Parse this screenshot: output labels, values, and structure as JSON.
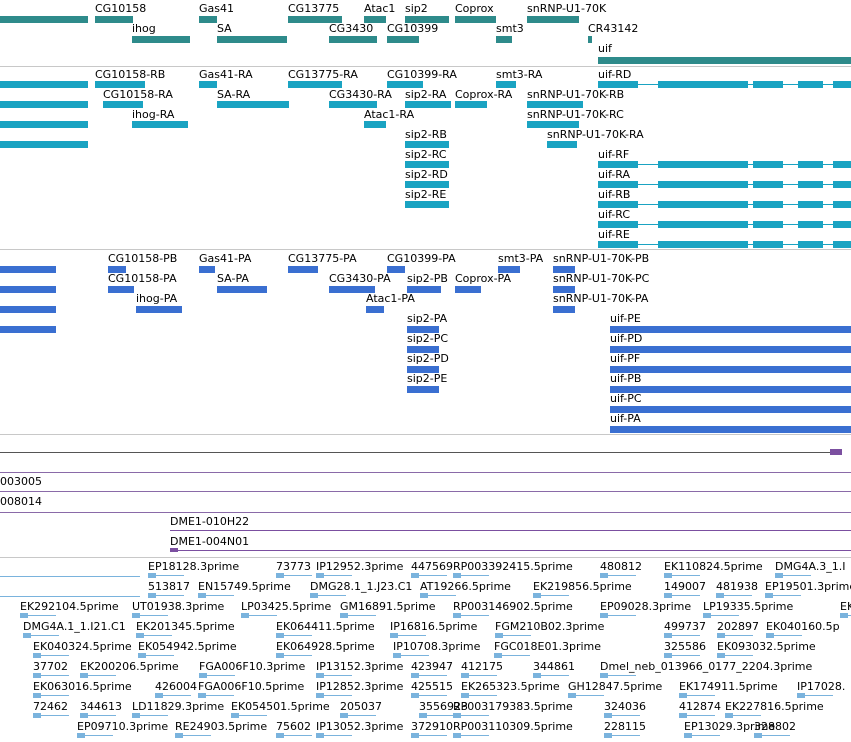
{
  "colors": {
    "gene": "#2e8b8b",
    "transcript": "#1aa3c2",
    "protein": "#3a6fd1",
    "clone": "#7b4fa0",
    "est": "#7ab3dd",
    "divider": "#c8c8c8",
    "trackline": "#8a6aa8"
  },
  "gene_track": {
    "labels": [
      "CG10158",
      "Gas41",
      "CG13775",
      "Atac1",
      "sip2",
      "Coprox",
      "snRNP-U1-70K",
      "ihog",
      "SA",
      "CG3430",
      "CG10399",
      "smt3",
      "CR43142",
      "uif"
    ]
  },
  "transcript_track": {
    "labels": [
      "CG10158-RB",
      "Gas41-RA",
      "CG13775-RA",
      "CG10399-RA",
      "smt3-RA",
      "uif-RD",
      "CG10158-RA",
      "SA-RA",
      "CG3430-RA",
      "sip2-RA",
      "Coprox-RA",
      "snRNP-U1-70K-RB",
      "ihog-RA",
      "Atac1-RA",
      "snRNP-U1-70K-RC",
      "snRNP-U1-70K-RA",
      "sip2-RB",
      "sip2-RC",
      "sip2-RD",
      "sip2-RE",
      "uif-RF",
      "uif-RA",
      "uif-RB",
      "uif-RC",
      "uif-RE"
    ]
  },
  "protein_track": {
    "labels": [
      "CG10158-PB",
      "Gas41-PA",
      "CG13775-PA",
      "CG10399-PA",
      "smt3-PA",
      "snRNP-U1-70K-PB",
      "CG10158-PA",
      "SA-PA",
      "CG3430-PA",
      "sip2-PB",
      "Coprox-PA",
      "snRNP-U1-70K-PC",
      "ihog-PA",
      "Atac1-PA",
      "snRNP-U1-70K-PA",
      "sip2-PA",
      "sip2-PC",
      "sip2-PD",
      "sip2-PE",
      "uif-PE",
      "uif-PD",
      "uif-PF",
      "uif-PB",
      "uif-PC",
      "uif-PA"
    ]
  },
  "clone_track": {
    "labels": [
      "003005",
      "008014",
      "DME1-010H22",
      "DME1-004N01"
    ]
  },
  "est_track": {
    "labels": [
      "EP18128.3prime",
      "73773",
      "IP12952.3prime",
      "447569",
      "RP003392415.5prime",
      "480812",
      "EK110824.5prime",
      "DMG4A.3_1.I",
      "513817",
      "EN15749.5prime",
      "DMG28.1_1.J23.C1",
      "AT19266.5prime",
      "EK219856.5prime",
      "149007",
      "481938",
      "EP19501.3prime",
      "EK292104.5prime",
      "UT01938.3prime",
      "LP03425.5prime",
      "GM16891.5prime",
      "RP003146902.5prime",
      "EP09028.3prime",
      "LP19335.5prime",
      "EK",
      "DMG4A.1_1.I21.C1",
      "EK201345.5prime",
      "EK064411.5prime",
      "IP16816.5prime",
      "FGM210B02.3prime",
      "499737",
      "202897",
      "EK040160.5p",
      "EK040324.5prime",
      "EK054942.5prime",
      "EK064928.5prime",
      "IP10708.3prime",
      "FGC018E01.3prime",
      "325586",
      "EK093032.5prime",
      "37702",
      "EK200206.5prime",
      "FGA006F10.3prime",
      "IP13152.3prime",
      "423947",
      "412175",
      "344861",
      "Dmel_neb_013966_0177_2204.3prime",
      "EK063016.5prime",
      "426004",
      "FGA006F10.5prime",
      "IP12852.3prime",
      "425515",
      "EK265323.5prime",
      "GH12847.5prime",
      "EK174911.5prime",
      "IP17028.",
      "72462",
      "344613",
      "LD11829.3prime",
      "EK054501.5prime",
      "205037",
      "3556923",
      "RP003179383.5prime",
      "324036",
      "412874",
      "EK227816.5prime",
      "EP09710.3prime",
      "RE24903.5prime",
      "75602",
      "IP13052.3prime",
      "372910",
      "RP003110309.5prime",
      "228115",
      "EP13029.3prime",
      "328802"
    ]
  }
}
